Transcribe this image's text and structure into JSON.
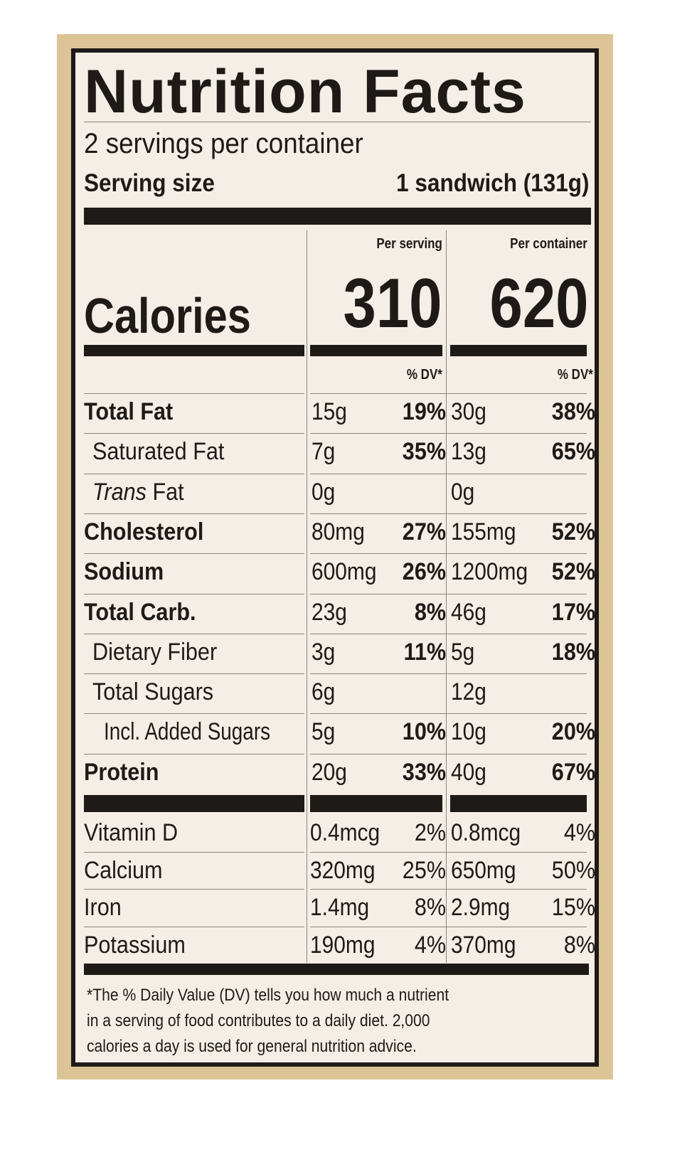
{
  "title": "Nutrition Facts",
  "servings_per_container": "2 servings per container",
  "serving_size_label": "Serving size",
  "serving_size_value": "1 sandwich (131g)",
  "col_headers": {
    "per_serving": "Per serving",
    "per_container": "Per container"
  },
  "calories": {
    "label": "Calories",
    "per_serving": "310",
    "per_container": "620"
  },
  "dv_header": "% DV*",
  "nutrients": [
    {
      "name": "Total Fat",
      "bold": true,
      "indent": 0,
      "s_amt": "15g",
      "s_dv": "19%",
      "c_amt": "30g",
      "c_dv": "38%"
    },
    {
      "name": "Saturated Fat",
      "bold": false,
      "indent": 1,
      "s_amt": "7g",
      "s_dv": "35%",
      "c_amt": "13g",
      "c_dv": "65%"
    },
    {
      "name": "Trans",
      "name_suffix": " Fat",
      "bold": false,
      "indent": 1,
      "italic_prefix": true,
      "s_amt": "0g",
      "s_dv": "",
      "c_amt": "0g",
      "c_dv": ""
    },
    {
      "name": "Cholesterol",
      "bold": true,
      "indent": 0,
      "s_amt": "80mg",
      "s_dv": "27%",
      "c_amt": "155mg",
      "c_dv": "52%"
    },
    {
      "name": "Sodium",
      "bold": true,
      "indent": 0,
      "s_amt": "600mg",
      "s_dv": "26%",
      "c_amt": "1200mg",
      "c_dv": "52%"
    },
    {
      "name": "Total Carb.",
      "bold": true,
      "indent": 0,
      "s_amt": "23g",
      "s_dv": "8%",
      "c_amt": "46g",
      "c_dv": "17%"
    },
    {
      "name": "Dietary Fiber",
      "bold": false,
      "indent": 1,
      "s_amt": "3g",
      "s_dv": "11%",
      "c_amt": "5g",
      "c_dv": "18%"
    },
    {
      "name": "Total Sugars",
      "bold": false,
      "indent": 1,
      "s_amt": "6g",
      "s_dv": "",
      "c_amt": "12g",
      "c_dv": ""
    },
    {
      "name": "Incl. Added Sugars",
      "bold": false,
      "indent": 2,
      "s_amt": "5g",
      "s_dv": "10%",
      "c_amt": "10g",
      "c_dv": "20%"
    },
    {
      "name": "Protein",
      "bold": true,
      "indent": 0,
      "s_amt": "20g",
      "s_dv": "33%",
      "c_amt": "40g",
      "c_dv": "67%"
    }
  ],
  "vitamins": [
    {
      "name": "Vitamin D",
      "s_amt": "0.4mcg",
      "s_dv": "2%",
      "c_amt": "0.8mcg",
      "c_dv": "4%"
    },
    {
      "name": "Calcium",
      "s_amt": "320mg",
      "s_dv": "25%",
      "c_amt": "650mg",
      "c_dv": "50%"
    },
    {
      "name": "Iron",
      "s_amt": "1.4mg",
      "s_dv": "8%",
      "c_amt": "2.9mg",
      "c_dv": "15%"
    },
    {
      "name": "Potassium",
      "s_amt": "190mg",
      "s_dv": "4%",
      "c_amt": "370mg",
      "c_dv": "8%"
    }
  ],
  "footnote": [
    "*The % Daily Value (DV) tells you how much a nutrient",
    " in a serving of food contributes to a daily diet. 2,000",
    " calories a day is used for general nutrition advice."
  ],
  "colors": {
    "ink": "#1e1a17",
    "label_bg": "#f4eee6",
    "package": "#dcc496"
  }
}
